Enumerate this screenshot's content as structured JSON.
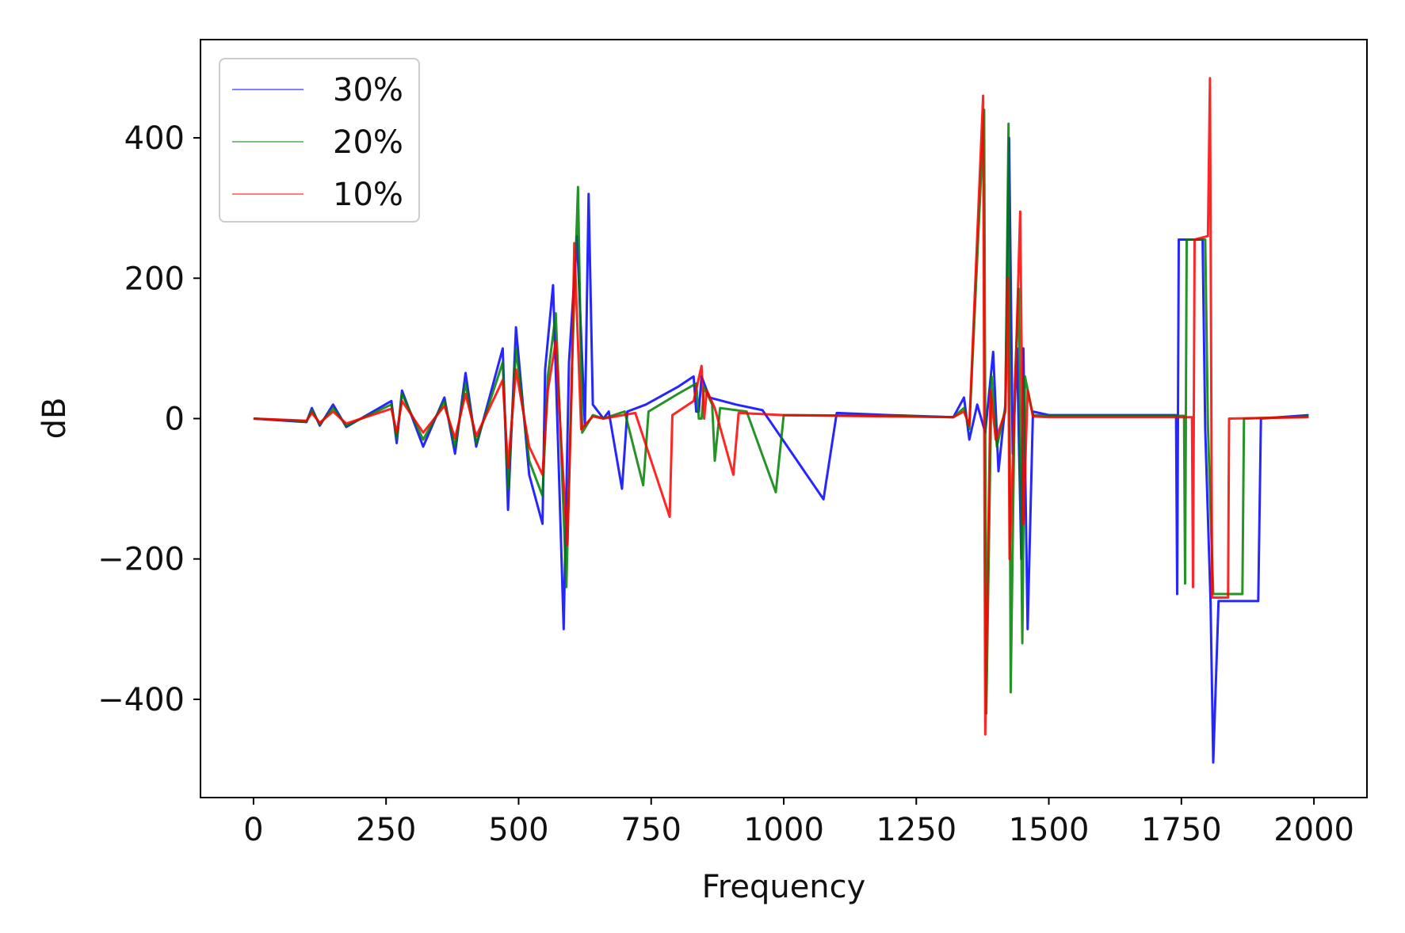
{
  "chart_data": {
    "type": "line",
    "title": "",
    "xlabel": "Frequency",
    "ylabel": "dB",
    "xlim": [
      -100,
      2100
    ],
    "ylim": [
      -540,
      540
    ],
    "xticks": [
      0,
      250,
      500,
      750,
      1000,
      1250,
      1500,
      1750,
      2000
    ],
    "yticks": [
      -400,
      -200,
      0,
      200,
      400
    ],
    "xtick_labels": [
      "0",
      "250",
      "500",
      "750",
      "1000",
      "1250",
      "1500",
      "1750",
      "2000"
    ],
    "ytick_labels": [
      "−400",
      "−200",
      "0",
      "200",
      "400"
    ],
    "grid": false,
    "legend_position": "upper-left",
    "series": [
      {
        "name": "30%",
        "color": "#0000ff",
        "points": [
          [
            0,
            0
          ],
          [
            100,
            -5
          ],
          [
            110,
            15
          ],
          [
            125,
            -10
          ],
          [
            150,
            20
          ],
          [
            175,
            -12
          ],
          [
            260,
            25
          ],
          [
            270,
            -35
          ],
          [
            280,
            40
          ],
          [
            320,
            -40
          ],
          [
            360,
            30
          ],
          [
            380,
            -50
          ],
          [
            400,
            65
          ],
          [
            420,
            -40
          ],
          [
            470,
            100
          ],
          [
            480,
            -130
          ],
          [
            495,
            130
          ],
          [
            520,
            -80
          ],
          [
            545,
            -150
          ],
          [
            550,
            70
          ],
          [
            565,
            190
          ],
          [
            575,
            -50
          ],
          [
            585,
            -300
          ],
          [
            595,
            80
          ],
          [
            610,
            260
          ],
          [
            625,
            -10
          ],
          [
            632,
            320
          ],
          [
            640,
            20
          ],
          [
            660,
            0
          ],
          [
            670,
            10
          ],
          [
            695,
            -100
          ],
          [
            705,
            10
          ],
          [
            740,
            20
          ],
          [
            800,
            45
          ],
          [
            830,
            60
          ],
          [
            835,
            10
          ],
          [
            840,
            10
          ],
          [
            845,
            60
          ],
          [
            860,
            30
          ],
          [
            910,
            20
          ],
          [
            960,
            12
          ],
          [
            1075,
            -115
          ],
          [
            1100,
            8
          ],
          [
            1200,
            5
          ],
          [
            1320,
            2
          ],
          [
            1340,
            30
          ],
          [
            1350,
            -30
          ],
          [
            1365,
            20
          ],
          [
            1380,
            -20
          ],
          [
            1395,
            95
          ],
          [
            1405,
            -75
          ],
          [
            1418,
            20
          ],
          [
            1425,
            400
          ],
          [
            1432,
            -50
          ],
          [
            1440,
            100
          ],
          [
            1448,
            -200
          ],
          [
            1452,
            100
          ],
          [
            1460,
            -300
          ],
          [
            1470,
            10
          ],
          [
            1500,
            5
          ],
          [
            1740,
            5
          ],
          [
            1742,
            -250
          ],
          [
            1745,
            255
          ],
          [
            1790,
            255
          ],
          [
            1795,
            -15
          ],
          [
            1805,
            -260
          ],
          [
            1810,
            -490
          ],
          [
            1820,
            -260
          ],
          [
            1895,
            -260
          ],
          [
            1900,
            0
          ],
          [
            1990,
            5
          ]
        ]
      },
      {
        "name": "20%",
        "color": "#008000",
        "points": [
          [
            0,
            0
          ],
          [
            100,
            -4
          ],
          [
            110,
            12
          ],
          [
            125,
            -8
          ],
          [
            150,
            15
          ],
          [
            175,
            -10
          ],
          [
            260,
            20
          ],
          [
            270,
            -28
          ],
          [
            280,
            35
          ],
          [
            320,
            -30
          ],
          [
            360,
            25
          ],
          [
            380,
            -40
          ],
          [
            400,
            50
          ],
          [
            420,
            -35
          ],
          [
            470,
            80
          ],
          [
            480,
            -100
          ],
          [
            495,
            100
          ],
          [
            520,
            -60
          ],
          [
            545,
            -110
          ],
          [
            555,
            60
          ],
          [
            570,
            150
          ],
          [
            580,
            -40
          ],
          [
            590,
            -240
          ],
          [
            600,
            60
          ],
          [
            612,
            330
          ],
          [
            620,
            -20
          ],
          [
            640,
            5
          ],
          [
            660,
            0
          ],
          [
            700,
            10
          ],
          [
            735,
            -95
          ],
          [
            745,
            10
          ],
          [
            800,
            35
          ],
          [
            835,
            50
          ],
          [
            840,
            0
          ],
          [
            845,
            0
          ],
          [
            850,
            45
          ],
          [
            865,
            20
          ],
          [
            870,
            -60
          ],
          [
            880,
            15
          ],
          [
            930,
            10
          ],
          [
            985,
            -105
          ],
          [
            1000,
            5
          ],
          [
            1200,
            4
          ],
          [
            1320,
            2
          ],
          [
            1340,
            15
          ],
          [
            1350,
            -15
          ],
          [
            1378,
            440
          ],
          [
            1382,
            -420
          ],
          [
            1392,
            60
          ],
          [
            1402,
            -40
          ],
          [
            1418,
            15
          ],
          [
            1424,
            420
          ],
          [
            1428,
            -390
          ],
          [
            1436,
            50
          ],
          [
            1443,
            185
          ],
          [
            1450,
            -320
          ],
          [
            1455,
            60
          ],
          [
            1470,
            5
          ],
          [
            1500,
            4
          ],
          [
            1755,
            4
          ],
          [
            1757,
            -235
          ],
          [
            1760,
            255
          ],
          [
            1795,
            255
          ],
          [
            1800,
            -10
          ],
          [
            1810,
            -250
          ],
          [
            1865,
            -250
          ],
          [
            1868,
            0
          ],
          [
            1990,
            3
          ]
        ]
      },
      {
        "name": "10%",
        "color": "#ff0000",
        "points": [
          [
            0,
            0
          ],
          [
            100,
            -3
          ],
          [
            110,
            8
          ],
          [
            125,
            -6
          ],
          [
            150,
            10
          ],
          [
            175,
            -7
          ],
          [
            260,
            14
          ],
          [
            270,
            -20
          ],
          [
            280,
            25
          ],
          [
            320,
            -20
          ],
          [
            360,
            18
          ],
          [
            380,
            -28
          ],
          [
            400,
            35
          ],
          [
            420,
            -25
          ],
          [
            470,
            55
          ],
          [
            480,
            -70
          ],
          [
            495,
            70
          ],
          [
            520,
            -40
          ],
          [
            545,
            -80
          ],
          [
            555,
            40
          ],
          [
            570,
            110
          ],
          [
            580,
            -30
          ],
          [
            592,
            -180
          ],
          [
            600,
            40
          ],
          [
            605,
            250
          ],
          [
            618,
            -15
          ],
          [
            640,
            3
          ],
          [
            660,
            0
          ],
          [
            720,
            8
          ],
          [
            785,
            -140
          ],
          [
            790,
            5
          ],
          [
            830,
            25
          ],
          [
            845,
            75
          ],
          [
            850,
            0
          ],
          [
            855,
            40
          ],
          [
            870,
            15
          ],
          [
            905,
            -80
          ],
          [
            915,
            8
          ],
          [
            1000,
            5
          ],
          [
            1200,
            3
          ],
          [
            1320,
            2
          ],
          [
            1340,
            10
          ],
          [
            1350,
            -10
          ],
          [
            1376,
            460
          ],
          [
            1380,
            -450
          ],
          [
            1390,
            40
          ],
          [
            1400,
            -30
          ],
          [
            1418,
            10
          ],
          [
            1423,
            200
          ],
          [
            1426,
            -200
          ],
          [
            1436,
            30
          ],
          [
            1446,
            295
          ],
          [
            1452,
            -150
          ],
          [
            1460,
            40
          ],
          [
            1470,
            3
          ],
          [
            1500,
            2
          ],
          [
            1770,
            2
          ],
          [
            1772,
            -240
          ],
          [
            1775,
            255
          ],
          [
            1800,
            260
          ],
          [
            1804,
            485
          ],
          [
            1808,
            -255
          ],
          [
            1838,
            -255
          ],
          [
            1840,
            0
          ],
          [
            1990,
            2
          ]
        ]
      }
    ]
  }
}
